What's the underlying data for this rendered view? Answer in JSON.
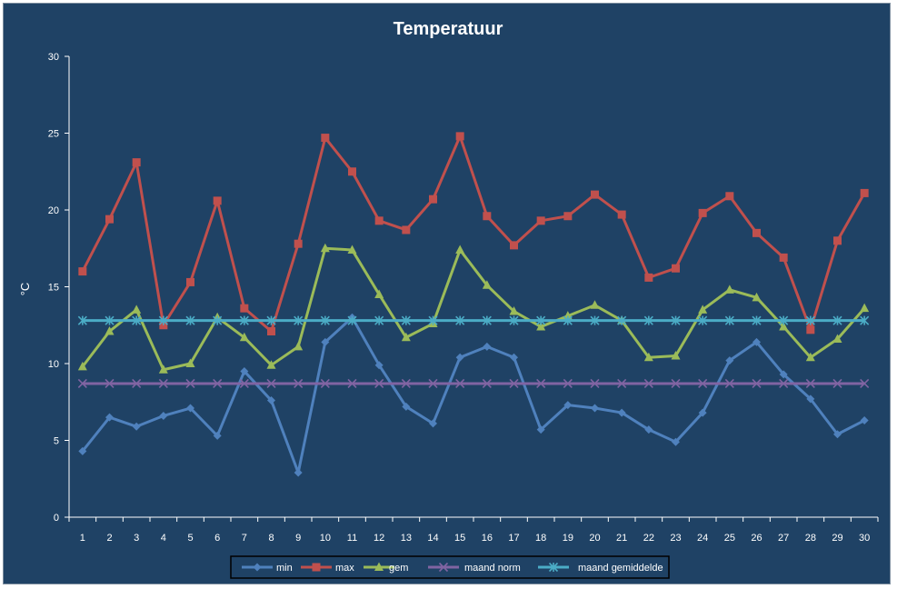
{
  "chart_data": {
    "type": "line",
    "title": "Temperatuur",
    "xlabel": "",
    "ylabel": "°C",
    "ylim": [
      0,
      30
    ],
    "yticks": [
      0,
      5,
      10,
      15,
      20,
      25,
      30
    ],
    "x": [
      1,
      2,
      3,
      4,
      5,
      6,
      7,
      8,
      9,
      10,
      11,
      12,
      13,
      14,
      15,
      16,
      17,
      18,
      19,
      20,
      21,
      22,
      23,
      24,
      25,
      26,
      27,
      28,
      29,
      30
    ],
    "grid": false,
    "legend_position": "bottom",
    "series": [
      {
        "name": "min",
        "color": "#4f81bd",
        "marker": "diamond",
        "values": [
          4.3,
          6.5,
          5.9,
          6.6,
          7.1,
          5.3,
          9.5,
          7.6,
          2.9,
          11.4,
          13.0,
          9.9,
          7.2,
          6.1,
          10.4,
          11.1,
          10.4,
          5.7,
          7.3,
          7.1,
          6.8,
          5.7,
          4.9,
          6.8,
          10.2,
          11.4,
          9.3,
          7.7,
          5.4,
          6.3
        ]
      },
      {
        "name": "max",
        "color": "#c0504d",
        "marker": "square",
        "values": [
          16.0,
          19.4,
          23.1,
          12.5,
          15.3,
          20.6,
          13.6,
          12.1,
          17.8,
          24.7,
          22.5,
          19.3,
          18.7,
          20.7,
          24.8,
          19.6,
          17.7,
          19.3,
          19.6,
          21.0,
          19.7,
          15.6,
          16.2,
          19.8,
          20.9,
          18.5,
          16.9,
          12.2,
          18.0,
          21.1
        ]
      },
      {
        "name": "gem",
        "color": "#9bbb59",
        "marker": "triangle",
        "values": [
          9.8,
          12.1,
          13.5,
          9.6,
          10.0,
          13.0,
          11.7,
          9.9,
          11.1,
          17.5,
          17.4,
          14.5,
          11.7,
          12.6,
          17.4,
          15.1,
          13.4,
          12.4,
          13.1,
          13.8,
          12.8,
          10.4,
          10.5,
          13.5,
          14.8,
          14.3,
          12.4,
          10.4,
          11.6,
          13.6
        ]
      },
      {
        "name": "maand norm",
        "color": "#8064a2",
        "marker": "x",
        "values": [
          8.7,
          8.7,
          8.7,
          8.7,
          8.7,
          8.7,
          8.7,
          8.7,
          8.7,
          8.7,
          8.7,
          8.7,
          8.7,
          8.7,
          8.7,
          8.7,
          8.7,
          8.7,
          8.7,
          8.7,
          8.7,
          8.7,
          8.7,
          8.7,
          8.7,
          8.7,
          8.7,
          8.7,
          8.7,
          8.7
        ]
      },
      {
        "name": "maand gemiddelde",
        "color": "#4bacc6",
        "marker": "star",
        "values": [
          12.8,
          12.8,
          12.8,
          12.8,
          12.8,
          12.8,
          12.8,
          12.8,
          12.8,
          12.8,
          12.8,
          12.8,
          12.8,
          12.8,
          12.8,
          12.8,
          12.8,
          12.8,
          12.8,
          12.8,
          12.8,
          12.8,
          12.8,
          12.8,
          12.8,
          12.8,
          12.8,
          12.8,
          12.8,
          12.8
        ]
      }
    ]
  },
  "colors": {
    "background": "#1f4265",
    "axis": "#ffffff",
    "legend_border": "#000000",
    "legend_background": "#1f4265"
  }
}
